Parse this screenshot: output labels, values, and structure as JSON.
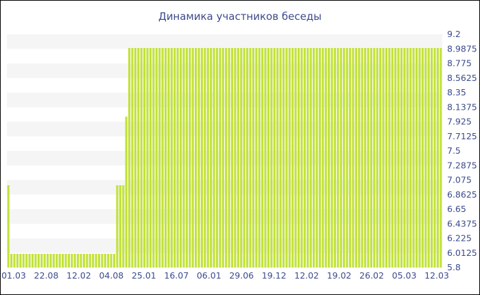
{
  "chart_data": {
    "type": "bar",
    "title": "Динамика участников беседы",
    "xlabel": "",
    "ylabel": "",
    "ylim": [
      5.8,
      9.2
    ],
    "y_ticks": [
      "9.2",
      "8.9875",
      "8.775",
      "8.5625",
      "8.35",
      "8.1375",
      "7.925",
      "7.7125",
      "7.5",
      "7.2875",
      "7.075",
      "6.8625",
      "6.65",
      "6.4375",
      "6.225",
      "6.0125",
      "5.8"
    ],
    "x_ticks": [
      "01.03",
      "22.08",
      "12.02",
      "04.08",
      "25.01",
      "16.07",
      "06.01",
      "29.06",
      "19.12",
      "12.02",
      "19.02",
      "26.02",
      "05.03",
      "12.03"
    ],
    "values": [
      7,
      6,
      6,
      6,
      6,
      6,
      6,
      6,
      6,
      6,
      6,
      6,
      6,
      6,
      6,
      6,
      6,
      6,
      6,
      6,
      6,
      6,
      6,
      6,
      6,
      6,
      6,
      6,
      6,
      6,
      6,
      6,
      6,
      6,
      6,
      6,
      7,
      7,
      7,
      8,
      9,
      9,
      9,
      9,
      9,
      9,
      9,
      9,
      9,
      9,
      9,
      9,
      9,
      9,
      9,
      9,
      9,
      9,
      9,
      9,
      9,
      9,
      9,
      9,
      9,
      9,
      9,
      9,
      9,
      9,
      9,
      9,
      9,
      9,
      9,
      9,
      9,
      9,
      9,
      9,
      9,
      9,
      9,
      9,
      9,
      9,
      9,
      9,
      9,
      9,
      9,
      9,
      9,
      9,
      9,
      9,
      9,
      9,
      9,
      9,
      9,
      9,
      9,
      9,
      9,
      9,
      9,
      9,
      9,
      9,
      9,
      9,
      9,
      9,
      9,
      9,
      9,
      9,
      9,
      9,
      9,
      9,
      9,
      9,
      9,
      9,
      9,
      9,
      9,
      9,
      9,
      9,
      9,
      9,
      9,
      9,
      9,
      9,
      9,
      9,
      9,
      9,
      9,
      9
    ],
    "grid": "horizontal bands",
    "bar_color": "#c2e23b",
    "band_color": "#f5f5f5",
    "text_color": "#3b4a8c"
  }
}
